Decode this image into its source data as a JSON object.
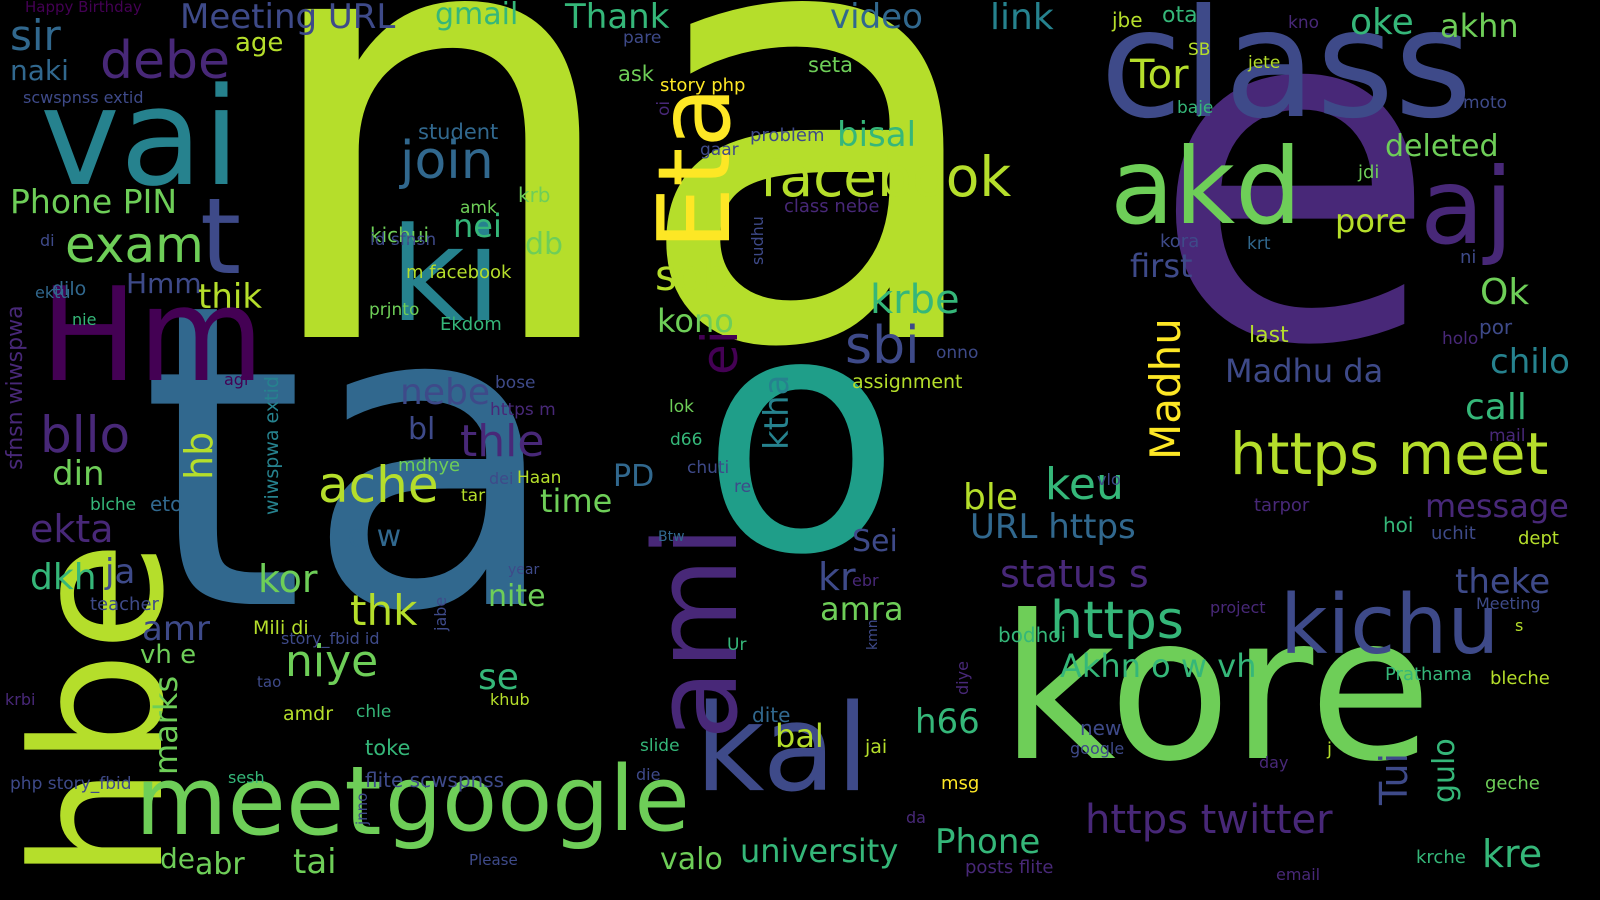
{
  "wordcloud": {
    "background": "#000000",
    "palette": [
      "#440154",
      "#482878",
      "#3e4a89",
      "#31688e",
      "#26828e",
      "#1f9e89",
      "#35b779",
      "#6ece58",
      "#b5de2b",
      "#fde725"
    ],
    "words": [
      {
        "text": "na",
        "color": "#b5de2b"
      },
      {
        "text": "e",
        "color": "#482878"
      },
      {
        "text": "ta",
        "color": "#31688e"
      },
      {
        "text": "o",
        "color": "#1f9e89"
      },
      {
        "text": "kore",
        "color": "#6ece58"
      },
      {
        "text": "vai",
        "color": "#26828e"
      },
      {
        "text": "class",
        "color": "#3e4a89"
      },
      {
        "text": "Eta",
        "color": "#fde725"
      },
      {
        "text": "akd",
        "color": "#6ece58"
      },
      {
        "text": "aj",
        "color": "#482878"
      },
      {
        "text": "Hm",
        "color": "#440154"
      },
      {
        "text": "hbe",
        "color": "#b5de2b"
      },
      {
        "text": "ki",
        "color": "#26828e"
      },
      {
        "text": "t",
        "color": "#3e4a89"
      },
      {
        "text": "kal",
        "color": "#3e4a89"
      },
      {
        "text": "ami",
        "color": "#482878"
      },
      {
        "text": "meet",
        "color": "#6ece58"
      },
      {
        "text": "google",
        "color": "#6ece58"
      },
      {
        "text": "https meet",
        "color": "#b5de2b"
      },
      {
        "text": "kichu",
        "color": "#3e4a89"
      },
      {
        "text": "facebook",
        "color": "#b5de2b"
      },
      {
        "text": "join",
        "color": "#31688e"
      },
      {
        "text": "sbi",
        "color": "#3e4a89"
      },
      {
        "text": "exam",
        "color": "#6ece58"
      },
      {
        "text": "bllo",
        "color": "#482878"
      },
      {
        "text": "debe",
        "color": "#482878"
      },
      {
        "text": "sir",
        "color": "#31688e"
      },
      {
        "text": "ache",
        "color": "#b5de2b"
      },
      {
        "text": "https",
        "color": "#35b779"
      },
      {
        "text": "https twitter",
        "color": "#482878"
      },
      {
        "text": "sob",
        "color": "#b5de2b"
      },
      {
        "text": "thle",
        "color": "#482878"
      },
      {
        "text": "ei",
        "color": "#440154"
      },
      {
        "text": "Madhu",
        "color": "#fde725"
      },
      {
        "text": "niye",
        "color": "#6ece58"
      },
      {
        "text": "keu",
        "color": "#35b779"
      },
      {
        "text": "ktha",
        "color": "#26828e"
      },
      {
        "text": "krbe",
        "color": "#35b779"
      },
      {
        "text": "Tor",
        "color": "#b5de2b"
      },
      {
        "text": "Meeting URL",
        "color": "#3e4a89"
      },
      {
        "text": "Thank",
        "color": "#35b779"
      },
      {
        "text": "gmail",
        "color": "#35b779"
      },
      {
        "text": "video",
        "color": "#31688e"
      },
      {
        "text": "link",
        "color": "#26828e"
      },
      {
        "text": "oke",
        "color": "#35b779"
      },
      {
        "text": "akhn",
        "color": "#6ece58"
      },
      {
        "text": "Phone PIN",
        "color": "#6ece58"
      },
      {
        "text": "naki",
        "color": "#31688e"
      },
      {
        "text": "age",
        "color": "#b5de2b"
      },
      {
        "text": "bisal",
        "color": "#35b779"
      },
      {
        "text": "deleted",
        "color": "#6ece58"
      },
      {
        "text": "pore",
        "color": "#b5de2b"
      },
      {
        "text": "first",
        "color": "#3e4a89"
      },
      {
        "text": "Ok",
        "color": "#6ece58"
      },
      {
        "text": "chilo",
        "color": "#26828e"
      },
      {
        "text": "call",
        "color": "#35b779"
      },
      {
        "text": "Madhu da",
        "color": "#3e4a89"
      },
      {
        "text": "message",
        "color": "#482878"
      },
      {
        "text": "theke",
        "color": "#3e4a89"
      },
      {
        "text": "status s",
        "color": "#482878"
      },
      {
        "text": "URL https",
        "color": "#31688e"
      },
      {
        "text": "ble",
        "color": "#b5de2b"
      },
      {
        "text": "Akhn o w vh",
        "color": "#35b779"
      },
      {
        "text": "h66",
        "color": "#35b779"
      },
      {
        "text": "Tui",
        "color": "#3e4a89"
      },
      {
        "text": "Phone",
        "color": "#35b779"
      },
      {
        "text": "university",
        "color": "#35b779"
      },
      {
        "text": "kre",
        "color": "#35b779"
      },
      {
        "text": "db",
        "color": "#6ece58"
      },
      {
        "text": "nei",
        "color": "#35b779"
      },
      {
        "text": "kono",
        "color": "#6ece58"
      },
      {
        "text": "Hmm",
        "color": "#3e4a89"
      },
      {
        "text": "thik",
        "color": "#b5de2b"
      },
      {
        "text": "nebe",
        "color": "#3e4a89"
      },
      {
        "text": "bl",
        "color": "#3e4a89"
      },
      {
        "text": "din",
        "color": "#6ece58"
      },
      {
        "text": "hb",
        "color": "#b5de2b"
      },
      {
        "text": "ekta",
        "color": "#482878"
      },
      {
        "text": "dkh",
        "color": "#35b779"
      },
      {
        "text": "ja",
        "color": "#3e4a89"
      },
      {
        "text": "kor",
        "color": "#6ece58"
      },
      {
        "text": "thk",
        "color": "#b5de2b"
      },
      {
        "text": "amr",
        "color": "#3e4a89"
      },
      {
        "text": "marks",
        "color": "#6ece58"
      },
      {
        "text": "time",
        "color": "#6ece58"
      },
      {
        "text": "PD",
        "color": "#31688e"
      },
      {
        "text": "se",
        "color": "#35b779"
      },
      {
        "text": "nite",
        "color": "#6ece58"
      },
      {
        "text": "amra",
        "color": "#6ece58"
      },
      {
        "text": "kr",
        "color": "#3e4a89"
      },
      {
        "text": "Sei",
        "color": "#3e4a89"
      },
      {
        "text": "bal",
        "color": "#b5de2b"
      },
      {
        "text": "valo",
        "color": "#6ece58"
      },
      {
        "text": "gulo",
        "color": "#35b779"
      },
      {
        "text": "abr",
        "color": "#6ece58"
      },
      {
        "text": "tai",
        "color": "#6ece58"
      },
      {
        "text": "de",
        "color": "#6ece58"
      },
      {
        "text": "vh e",
        "color": "#6ece58"
      },
      {
        "text": "d w",
        "color": "#31688e"
      },
      {
        "text": "Happy Birthday",
        "color": "#440154"
      },
      {
        "text": "jbe",
        "color": "#b5de2b"
      },
      {
        "text": "ota",
        "color": "#35b779"
      },
      {
        "text": "kno",
        "color": "#482878"
      },
      {
        "text": "pare",
        "color": "#3e4a89"
      },
      {
        "text": "seta",
        "color": "#6ece58"
      },
      {
        "text": "SB",
        "color": "#b5de2b"
      },
      {
        "text": "jete",
        "color": "#b5de2b"
      },
      {
        "text": "ask",
        "color": "#6ece58"
      },
      {
        "text": "story php",
        "color": "#fde725"
      },
      {
        "text": "baje",
        "color": "#35b779"
      },
      {
        "text": "moto",
        "color": "#3e4a89"
      },
      {
        "text": "scwspnss extid",
        "color": "#3e4a89"
      },
      {
        "text": "student",
        "color": "#31688e"
      },
      {
        "text": "oi",
        "color": "#482878"
      },
      {
        "text": "gaar",
        "color": "#3e4a89"
      },
      {
        "text": "problem",
        "color": "#3e4a89"
      },
      {
        "text": "jdi",
        "color": "#6ece58"
      },
      {
        "text": "krb",
        "color": "#6ece58"
      },
      {
        "text": "amk",
        "color": "#6ece58"
      },
      {
        "text": "class nebe",
        "color": "#482878"
      },
      {
        "text": "kichui",
        "color": "#6ece58"
      },
      {
        "text": "sudhu",
        "color": "#3e4a89"
      },
      {
        "text": "id sfnsn",
        "color": "#3e4a89"
      },
      {
        "text": "di",
        "color": "#3e4a89"
      },
      {
        "text": "kora",
        "color": "#3e4a89"
      },
      {
        "text": "krt",
        "color": "#31688e"
      },
      {
        "text": "ni",
        "color": "#3e4a89"
      },
      {
        "text": "m facebook",
        "color": "#b5de2b"
      },
      {
        "text": "dilo",
        "color": "#31688e"
      },
      {
        "text": "ektu",
        "color": "#31688e"
      },
      {
        "text": "nie",
        "color": "#35b779"
      },
      {
        "text": "prjnto",
        "color": "#6ece58"
      },
      {
        "text": "Ekdom",
        "color": "#35b779"
      },
      {
        "text": "por",
        "color": "#3e4a89"
      },
      {
        "text": "last",
        "color": "#b5de2b"
      },
      {
        "text": "holo",
        "color": "#482878"
      },
      {
        "text": "onno",
        "color": "#3e4a89"
      },
      {
        "text": "assignment",
        "color": "#b5de2b"
      },
      {
        "text": "agr",
        "color": "#440154"
      },
      {
        "text": "sfnsn wiwspwa",
        "color": "#482878"
      },
      {
        "text": "wiwspwa extid",
        "color": "#26828e"
      },
      {
        "text": "bose",
        "color": "#3e4a89"
      },
      {
        "text": "https m",
        "color": "#482878"
      },
      {
        "text": "lok",
        "color": "#6ece58"
      },
      {
        "text": "mail",
        "color": "#482878"
      },
      {
        "text": "d66",
        "color": "#35b779"
      },
      {
        "text": "chuti",
        "color": "#3e4a89"
      },
      {
        "text": "mdhye",
        "color": "#6ece58"
      },
      {
        "text": "dei",
        "color": "#3e4a89"
      },
      {
        "text": "Haan",
        "color": "#b5de2b"
      },
      {
        "text": "vlo",
        "color": "#3e4a89"
      },
      {
        "text": "re",
        "color": "#3e4a89"
      },
      {
        "text": "tarpor",
        "color": "#482878"
      },
      {
        "text": "hoi",
        "color": "#35b779"
      },
      {
        "text": "uchit",
        "color": "#3e4a89"
      },
      {
        "text": "dept",
        "color": "#b5de2b"
      },
      {
        "text": "blche",
        "color": "#35b779"
      },
      {
        "text": "eto",
        "color": "#31688e"
      },
      {
        "text": "tar",
        "color": "#b5de2b"
      },
      {
        "text": "Btw",
        "color": "#31688e"
      },
      {
        "text": "year",
        "color": "#3e4a89"
      },
      {
        "text": "ebr",
        "color": "#482878"
      },
      {
        "text": "teacher",
        "color": "#3e4a89"
      },
      {
        "text": "jabe",
        "color": "#3e4a89"
      },
      {
        "text": "project",
        "color": "#482878"
      },
      {
        "text": "Meeting",
        "color": "#3e4a89"
      },
      {
        "text": "s",
        "color": "#b5de2b"
      },
      {
        "text": "bodhoi",
        "color": "#35b779"
      },
      {
        "text": "Mili di",
        "color": "#b5de2b"
      },
      {
        "text": "story_fbid id",
        "color": "#3e4a89"
      },
      {
        "text": "Ur",
        "color": "#35b779"
      },
      {
        "text": "kmn",
        "color": "#3e4a89"
      },
      {
        "text": "tao",
        "color": "#3e4a89"
      },
      {
        "text": "diye",
        "color": "#482878"
      },
      {
        "text": "Prathama",
        "color": "#35b779"
      },
      {
        "text": "bleche",
        "color": "#b5de2b"
      },
      {
        "text": "krbi",
        "color": "#482878"
      },
      {
        "text": "khub",
        "color": "#b5de2b"
      },
      {
        "text": "chle",
        "color": "#35b779"
      },
      {
        "text": "amdr",
        "color": "#b5de2b"
      },
      {
        "text": "dite",
        "color": "#31688e"
      },
      {
        "text": "new",
        "color": "#3e4a89"
      },
      {
        "text": "toke",
        "color": "#35b779"
      },
      {
        "text": "jai",
        "color": "#b5de2b"
      },
      {
        "text": "slide",
        "color": "#35b779"
      },
      {
        "text": "google",
        "color": "#3e4a89"
      },
      {
        "text": "j",
        "color": "#b5de2b"
      },
      {
        "text": "day",
        "color": "#482878"
      },
      {
        "text": "geche",
        "color": "#6ece58"
      },
      {
        "text": "php story_fbid",
        "color": "#3e4a89"
      },
      {
        "text": "sesh",
        "color": "#35b779"
      },
      {
        "text": "flite scwspnss",
        "color": "#3e4a89"
      },
      {
        "text": "die",
        "color": "#3e4a89"
      },
      {
        "text": "msg",
        "color": "#fde725"
      },
      {
        "text": "jnno",
        "color": "#3e4a89"
      },
      {
        "text": "da",
        "color": "#482878"
      },
      {
        "text": "Please",
        "color": "#3e4a89"
      },
      {
        "text": "posts flite",
        "color": "#482878"
      },
      {
        "text": "krche",
        "color": "#35b779"
      },
      {
        "text": "email",
        "color": "#482878"
      }
    ]
  }
}
